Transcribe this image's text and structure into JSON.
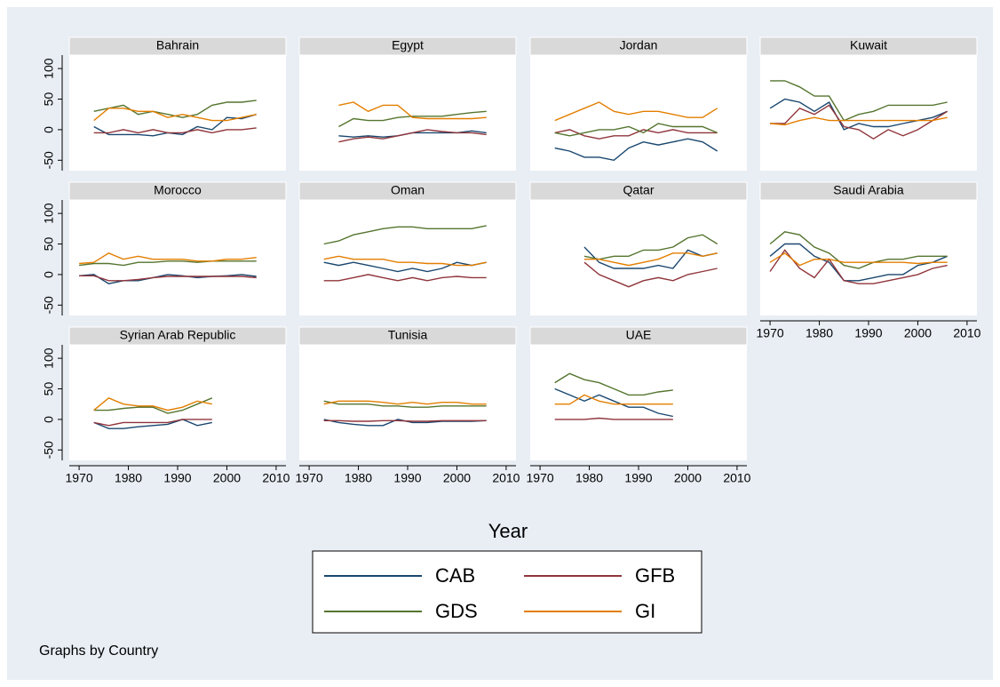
{
  "chart_data": {
    "type": "line",
    "x_label": "Year",
    "note": "Graphs by Country",
    "xlim": [
      1968,
      2012
    ],
    "xticks": [
      1970,
      1980,
      1990,
      2000,
      2010
    ],
    "ylim": [
      -67,
      122
    ],
    "yticks": [
      -50,
      0,
      50,
      100
    ],
    "x": [
      1970,
      1973,
      1976,
      1979,
      1982,
      1985,
      1988,
      1991,
      1994,
      1997,
      2000,
      2003,
      2006
    ],
    "series": [
      {
        "name": "CAB",
        "color": "#1a476f"
      },
      {
        "name": "GFB",
        "color": "#90353b"
      },
      {
        "name": "GDS",
        "color": "#55752f"
      },
      {
        "name": "GI",
        "color": "#e37e00"
      }
    ],
    "panels": [
      {
        "title": "Bahrain",
        "series": [
          [
            null,
            5,
            -8,
            -8,
            -8,
            -10,
            -5,
            -8,
            5,
            0,
            20,
            18,
            25
          ],
          [
            null,
            -5,
            -5,
            0,
            -5,
            0,
            -5,
            -5,
            0,
            -5,
            0,
            0,
            3
          ],
          [
            null,
            30,
            35,
            40,
            25,
            30,
            25,
            20,
            25,
            40,
            45,
            45,
            48
          ],
          [
            null,
            15,
            35,
            35,
            30,
            30,
            20,
            25,
            20,
            15,
            15,
            20,
            25
          ]
        ]
      },
      {
        "title": "Egypt",
        "series": [
          [
            null,
            null,
            -10,
            -12,
            -10,
            -12,
            -10,
            -5,
            -5,
            -5,
            -5,
            -2,
            -5
          ],
          [
            null,
            null,
            -20,
            -15,
            -12,
            -15,
            -10,
            -5,
            0,
            -3,
            -5,
            -5,
            -8
          ],
          [
            null,
            null,
            5,
            18,
            15,
            15,
            20,
            22,
            22,
            22,
            25,
            28,
            30
          ],
          [
            null,
            null,
            40,
            45,
            30,
            40,
            40,
            20,
            18,
            18,
            18,
            18,
            20
          ]
        ]
      },
      {
        "title": "Jordan",
        "series": [
          [
            null,
            -30,
            -35,
            -45,
            -45,
            -50,
            -30,
            -20,
            -25,
            -20,
            -15,
            -20,
            -35
          ],
          [
            null,
            -5,
            0,
            -10,
            -15,
            -10,
            -10,
            0,
            -5,
            0,
            -5,
            -5,
            -5
          ],
          [
            null,
            -5,
            -10,
            -5,
            0,
            0,
            5,
            -5,
            10,
            5,
            5,
            5,
            -5
          ],
          [
            null,
            15,
            25,
            35,
            45,
            30,
            25,
            30,
            30,
            25,
            20,
            20,
            35
          ]
        ]
      },
      {
        "title": "Kuwait",
        "series": [
          [
            35,
            50,
            45,
            30,
            45,
            0,
            10,
            5,
            5,
            10,
            15,
            20,
            30
          ],
          [
            10,
            10,
            35,
            25,
            40,
            5,
            0,
            -15,
            0,
            -10,
            0,
            15,
            30
          ],
          [
            80,
            80,
            70,
            55,
            55,
            15,
            25,
            30,
            40,
            40,
            40,
            40,
            45
          ],
          [
            10,
            8,
            15,
            20,
            15,
            15,
            15,
            15,
            15,
            15,
            15,
            15,
            20
          ]
        ]
      },
      {
        "title": "Morocco",
        "series": [
          [
            -2,
            0,
            -15,
            -10,
            -10,
            -5,
            0,
            -2,
            -5,
            -3,
            -2,
            0,
            -3
          ],
          [
            -2,
            -2,
            -10,
            -10,
            -8,
            -5,
            -3,
            -3,
            -3,
            -3,
            -3,
            -3,
            -5
          ],
          [
            15,
            18,
            18,
            15,
            20,
            20,
            22,
            22,
            20,
            22,
            22,
            22,
            22
          ],
          [
            18,
            20,
            35,
            25,
            30,
            25,
            25,
            25,
            22,
            22,
            25,
            25,
            28
          ]
        ]
      },
      {
        "title": "Oman",
        "series": [
          [
            null,
            20,
            15,
            20,
            15,
            10,
            5,
            10,
            5,
            10,
            20,
            15,
            20
          ],
          [
            null,
            -10,
            -10,
            -5,
            0,
            -5,
            -10,
            -5,
            -10,
            -5,
            -3,
            -5,
            -5
          ],
          [
            null,
            50,
            55,
            65,
            70,
            75,
            78,
            78,
            75,
            75,
            75,
            75,
            80
          ],
          [
            null,
            25,
            30,
            25,
            25,
            25,
            20,
            20,
            18,
            18,
            15,
            15,
            20
          ]
        ]
      },
      {
        "title": "Qatar",
        "series": [
          [
            null,
            null,
            null,
            45,
            20,
            10,
            10,
            10,
            15,
            10,
            40,
            30,
            35
          ],
          [
            null,
            null,
            null,
            20,
            0,
            -10,
            -20,
            -10,
            -5,
            -10,
            0,
            5,
            10
          ],
          [
            null,
            null,
            null,
            30,
            25,
            30,
            30,
            40,
            40,
            45,
            60,
            65,
            50
          ],
          [
            null,
            null,
            null,
            25,
            25,
            20,
            15,
            20,
            25,
            35,
            35,
            30,
            35
          ]
        ]
      },
      {
        "title": "Saudi Arabia",
        "series": [
          [
            30,
            50,
            50,
            30,
            20,
            -10,
            -10,
            -5,
            0,
            0,
            15,
            20,
            30
          ],
          [
            5,
            40,
            10,
            -5,
            25,
            -10,
            -15,
            -15,
            -10,
            -5,
            0,
            10,
            15
          ],
          [
            50,
            70,
            65,
            45,
            35,
            15,
            10,
            20,
            25,
            25,
            30,
            30,
            30
          ],
          [
            20,
            35,
            15,
            25,
            25,
            20,
            20,
            20,
            20,
            20,
            18,
            20,
            20
          ]
        ]
      },
      {
        "title": "Syrian Arab Republic",
        "series": [
          [
            null,
            -5,
            -15,
            -15,
            -12,
            -10,
            -8,
            0,
            -10,
            -5,
            null,
            null,
            null
          ],
          [
            null,
            -5,
            -10,
            -5,
            -5,
            -5,
            -5,
            0,
            0,
            0,
            null,
            null,
            null
          ],
          [
            null,
            15,
            15,
            18,
            20,
            20,
            10,
            15,
            25,
            35,
            null,
            null,
            null
          ],
          [
            null,
            15,
            35,
            25,
            22,
            22,
            15,
            20,
            30,
            25,
            null,
            null,
            null
          ]
        ]
      },
      {
        "title": "Tunisia",
        "series": [
          [
            null,
            0,
            -5,
            -8,
            -10,
            -10,
            0,
            -5,
            -5,
            -3,
            -3,
            -3,
            -2
          ],
          [
            null,
            -2,
            -2,
            -3,
            -3,
            -2,
            -2,
            -3,
            -3,
            -2,
            -2,
            -2,
            -2
          ],
          [
            null,
            30,
            25,
            25,
            25,
            22,
            22,
            20,
            20,
            22,
            22,
            22,
            22
          ],
          [
            null,
            25,
            30,
            30,
            30,
            28,
            25,
            28,
            25,
            28,
            28,
            25,
            25
          ]
        ]
      },
      {
        "title": "UAE",
        "series": [
          [
            null,
            50,
            40,
            30,
            40,
            30,
            20,
            20,
            10,
            5,
            null,
            null,
            null
          ],
          [
            null,
            0,
            0,
            0,
            2,
            0,
            0,
            0,
            0,
            0,
            null,
            null,
            null
          ],
          [
            null,
            60,
            75,
            65,
            60,
            50,
            40,
            40,
            45,
            48,
            null,
            null,
            null
          ],
          [
            null,
            25,
            25,
            40,
            30,
            25,
            25,
            25,
            25,
            25,
            null,
            null,
            null
          ]
        ]
      }
    ]
  }
}
